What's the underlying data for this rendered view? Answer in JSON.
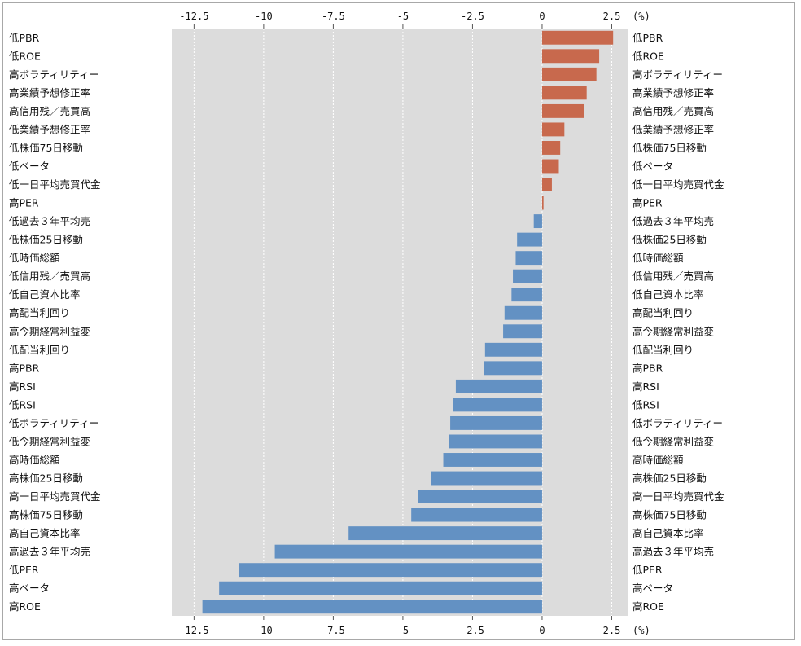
{
  "chart_data": {
    "type": "bar",
    "orientation": "horizontal",
    "unit": "(%)",
    "xlim": [
      -13.3,
      3.1
    ],
    "xticks": [
      -12.5,
      -10,
      -7.5,
      -5,
      -2.5,
      0,
      2.5
    ],
    "xtick_labels": [
      "-12.5",
      "-10",
      "-7.5",
      "-5",
      "-2.5",
      "0",
      "2.5"
    ],
    "grid": true,
    "colors": {
      "positive": "#c8694d",
      "negative": "#6391c3",
      "plot_bg": "#dcdcdc"
    },
    "categories": [
      "低PBR",
      "低ROE",
      "高ボラティリティー",
      "高業績予想修正率",
      "高信用残／売買高",
      "低業績予想修正率",
      "低株価75日移動",
      "低ベータ",
      "低一日平均売買代金",
      "高PER",
      "低過去３年平均売",
      "低株価25日移動",
      "低時価総額",
      "低信用残／売買高",
      "低自己資本比率",
      "高配当利回り",
      "高今期経常利益変",
      "低配当利回り",
      "高PBR",
      "高RSI",
      "低RSI",
      "低ボラティリティー",
      "低今期経常利益変",
      "高時価総額",
      "高株価25日移動",
      "高一日平均売買代金",
      "高株価75日移動",
      "高自己資本比率",
      "高過去３年平均売",
      "低PER",
      "高ベータ",
      "高ROE"
    ],
    "values": [
      2.55,
      2.05,
      1.95,
      1.6,
      1.5,
      0.8,
      0.65,
      0.6,
      0.35,
      0.05,
      -0.3,
      -0.9,
      -0.95,
      -1.05,
      -1.1,
      -1.35,
      -1.4,
      -2.05,
      -2.1,
      -3.1,
      -3.2,
      -3.3,
      -3.35,
      -3.55,
      -4.0,
      -4.45,
      -4.7,
      -6.95,
      -9.6,
      -10.9,
      -11.6,
      -12.2
    ]
  }
}
